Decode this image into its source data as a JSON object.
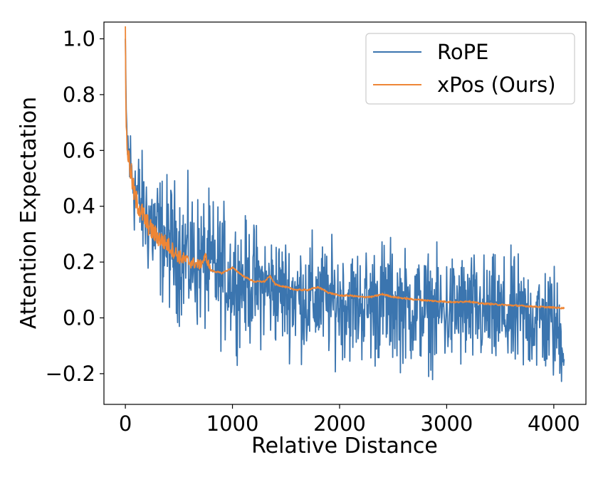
{
  "chart_data": {
    "type": "line",
    "xlabel": "Relative Distance",
    "ylabel": "Attention Expectation",
    "xlim": [
      -200,
      4300
    ],
    "ylim": [
      -0.31,
      1.06
    ],
    "xticks": [
      0,
      1000,
      2000,
      3000,
      4000
    ],
    "xtick_labels": [
      "0",
      "1000",
      "2000",
      "3000",
      "4000"
    ],
    "yticks": [
      -0.2,
      0.0,
      0.2,
      0.4,
      0.6,
      0.8,
      1.0
    ],
    "ytick_labels": [
      "−0.2",
      "0.0",
      "0.2",
      "0.4",
      "0.6",
      "0.8",
      "1.0"
    ],
    "grid": false,
    "legend_position": "upper-right",
    "series": [
      {
        "name": "RoPE",
        "color": "#3b75af",
        "x": [
          0,
          5,
          10,
          20,
          40,
          60,
          80,
          100,
          150,
          200,
          250,
          300,
          400,
          500,
          600,
          700,
          800,
          900,
          1000,
          1100,
          1200,
          1300,
          1400,
          1500,
          1600,
          1700,
          1800,
          1900,
          2000,
          2100,
          2200,
          2300,
          2400,
          2500,
          2600,
          2700,
          2800,
          2900,
          3000,
          3100,
          3200,
          3300,
          3400,
          3500,
          3600,
          3700,
          3800,
          3900,
          4000,
          4096
        ],
        "mean": [
          1.0,
          0.8,
          0.68,
          0.62,
          0.56,
          0.52,
          0.48,
          0.45,
          0.4,
          0.36,
          0.33,
          0.3,
          0.27,
          0.24,
          0.21,
          0.2,
          0.18,
          0.16,
          0.14,
          0.13,
          0.12,
          0.11,
          0.1,
          0.09,
          0.08,
          0.07,
          0.07,
          0.06,
          0.06,
          0.05,
          0.05,
          0.05,
          0.06,
          0.05,
          0.04,
          0.03,
          0.03,
          0.02,
          0.02,
          0.03,
          0.02,
          0.02,
          0.01,
          0.01,
          0.0,
          0.0,
          0.0,
          -0.01,
          -0.02,
          -0.1
        ],
        "spread": [
          0.0,
          0.04,
          0.06,
          0.1,
          0.12,
          0.12,
          0.13,
          0.14,
          0.14,
          0.15,
          0.16,
          0.17,
          0.17,
          0.18,
          0.18,
          0.18,
          0.18,
          0.18,
          0.17,
          0.16,
          0.16,
          0.15,
          0.15,
          0.15,
          0.15,
          0.16,
          0.16,
          0.15,
          0.15,
          0.15,
          0.15,
          0.16,
          0.17,
          0.16,
          0.15,
          0.15,
          0.15,
          0.15,
          0.15,
          0.16,
          0.16,
          0.15,
          0.15,
          0.15,
          0.16,
          0.16,
          0.15,
          0.15,
          0.16,
          0.1
        ]
      },
      {
        "name": "xPos (Ours)",
        "color": "#ee8636",
        "x": [
          0,
          5,
          10,
          20,
          40,
          60,
          80,
          100,
          150,
          200,
          250,
          300,
          400,
          500,
          600,
          700,
          750,
          800,
          900,
          1000,
          1100,
          1200,
          1300,
          1350,
          1400,
          1500,
          1600,
          1700,
          1800,
          1900,
          2000,
          2100,
          2200,
          2300,
          2400,
          2500,
          2600,
          2700,
          2800,
          2900,
          3000,
          3100,
          3200,
          3300,
          3400,
          3500,
          3600,
          3700,
          3800,
          3900,
          4000,
          4096
        ],
        "y": [
          1.0,
          0.78,
          0.66,
          0.6,
          0.55,
          0.5,
          0.45,
          0.42,
          0.38,
          0.34,
          0.31,
          0.29,
          0.26,
          0.22,
          0.2,
          0.19,
          0.22,
          0.17,
          0.16,
          0.18,
          0.15,
          0.13,
          0.13,
          0.15,
          0.12,
          0.11,
          0.1,
          0.1,
          0.11,
          0.09,
          0.08,
          0.08,
          0.075,
          0.075,
          0.085,
          0.075,
          0.07,
          0.066,
          0.063,
          0.06,
          0.058,
          0.056,
          0.06,
          0.052,
          0.05,
          0.047,
          0.045,
          0.043,
          0.041,
          0.039,
          0.037,
          0.035
        ]
      }
    ]
  }
}
